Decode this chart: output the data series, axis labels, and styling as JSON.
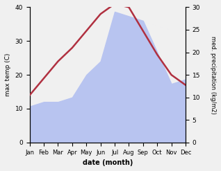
{
  "months": [
    "Jan",
    "Feb",
    "Mar",
    "Apr",
    "May",
    "Jun",
    "Jul",
    "Aug",
    "Sep",
    "Oct",
    "Nov",
    "Dec"
  ],
  "temp": [
    14,
    19,
    24,
    28,
    33,
    38,
    41,
    40,
    33,
    26,
    20,
    17
  ],
  "precip": [
    8,
    9,
    9,
    10,
    15,
    18,
    29,
    28,
    27,
    20,
    13,
    14
  ],
  "temp_color": "#b03040",
  "precip_color": "#b8c4f0",
  "left_ylabel": "max temp (C)",
  "right_ylabel": "med. precipitation (kg/m2)",
  "xlabel": "date (month)",
  "left_ylim": [
    0,
    40
  ],
  "right_ylim": [
    0,
    30
  ],
  "left_yticks": [
    0,
    10,
    20,
    30,
    40
  ],
  "right_yticks": [
    0,
    5,
    10,
    15,
    20,
    25,
    30
  ],
  "bg_color": "#f0f0f0",
  "plot_bg_color": "#ffffff"
}
